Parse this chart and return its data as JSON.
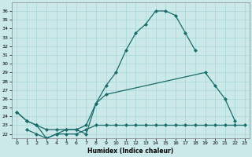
{
  "xlabel": "Humidex (Indice chaleur)",
  "xlim": [
    -0.5,
    23.5
  ],
  "ylim": [
    21.5,
    37.0
  ],
  "yticks": [
    22,
    23,
    24,
    25,
    26,
    27,
    28,
    29,
    30,
    31,
    32,
    33,
    34,
    35,
    36
  ],
  "xticks": [
    0,
    1,
    2,
    3,
    4,
    5,
    6,
    7,
    8,
    9,
    10,
    11,
    12,
    13,
    14,
    15,
    16,
    17,
    18,
    19,
    20,
    21,
    22,
    23
  ],
  "bg_color": "#cbe9e9",
  "line_color": "#1a6b6b",
  "grid_color": "#add8d8",
  "curve1_x": [
    0,
    1,
    2,
    3,
    4,
    5,
    6,
    7,
    8,
    9,
    10,
    11,
    12,
    13,
    14,
    15,
    16,
    17,
    18
  ],
  "curve1_y": [
    24.5,
    23.5,
    23.0,
    21.5,
    22.0,
    22.5,
    22.5,
    23.0,
    25.5,
    27.5,
    29.0,
    31.5,
    33.5,
    34.5,
    36.0,
    36.0,
    35.5,
    33.5,
    31.5
  ],
  "curve2_x": [
    0,
    1,
    2,
    3,
    4,
    5,
    6,
    7,
    8,
    9,
    19,
    20,
    21,
    22
  ],
  "curve2_y": [
    24.5,
    23.5,
    23.0,
    22.5,
    22.5,
    22.5,
    22.5,
    22.0,
    25.5,
    26.5,
    29.0,
    27.5,
    26.0,
    23.5
  ],
  "curve2_break": 9,
  "curve3_x": [
    1,
    2,
    3,
    4,
    5,
    6,
    7,
    8,
    9,
    10,
    11,
    12,
    13,
    14,
    15,
    16,
    17,
    18,
    19,
    20,
    21,
    22,
    23
  ],
  "curve3_y": [
    22.5,
    22.0,
    21.5,
    22.0,
    22.0,
    22.0,
    22.5,
    23.0,
    23.0,
    23.0,
    23.0,
    23.0,
    23.0,
    23.0,
    23.0,
    23.0,
    23.0,
    23.0,
    23.0,
    23.0,
    23.0,
    23.0,
    23.0
  ]
}
